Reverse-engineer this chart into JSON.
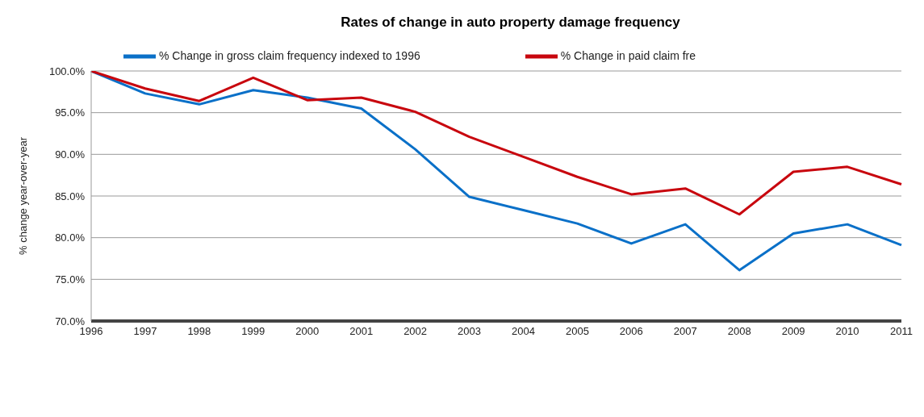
{
  "chart_data": {
    "type": "line",
    "title": "Rates of change in auto property damage frequency",
    "ylabel": "% change year-over-year",
    "categories": [
      "1996",
      "1997",
      "1998",
      "1999",
      "2000",
      "2001",
      "2002",
      "2003",
      "2004",
      "2005",
      "2006",
      "2007",
      "2008",
      "2009",
      "2010",
      "2011"
    ],
    "series": [
      {
        "name": "% Change in gross claim frequency indexed to 1996",
        "color": "#0a70c8",
        "values": [
          100,
          97.3,
          96.0,
          97.7,
          96.8,
          95.5,
          90.6,
          84.9,
          83.3,
          81.7,
          79.3,
          81.6,
          76.1,
          80.5,
          81.6,
          79.1
        ]
      },
      {
        "name": "% Change in paid claim fre",
        "color": "#c8060e",
        "values": [
          100,
          97.9,
          96.4,
          99.2,
          96.5,
          96.8,
          95.1,
          92.1,
          89.7,
          87.3,
          85.2,
          85.9,
          82.8,
          87.9,
          88.5,
          86.4
        ]
      }
    ],
    "ylim": [
      70,
      100
    ],
    "yticks": [
      {
        "value": 70,
        "label": "70.0%"
      },
      {
        "value": 75,
        "label": "75.0%"
      },
      {
        "value": 80,
        "label": "80.0%"
      },
      {
        "value": 85,
        "label": "85.0%"
      },
      {
        "value": 90,
        "label": "90.0%"
      },
      {
        "value": 95,
        "label": "95.0%"
      },
      {
        "value": 100,
        "label": "100.0%"
      }
    ],
    "grid": "y",
    "legend": "top",
    "marker": "none",
    "line_style": "solid"
  }
}
